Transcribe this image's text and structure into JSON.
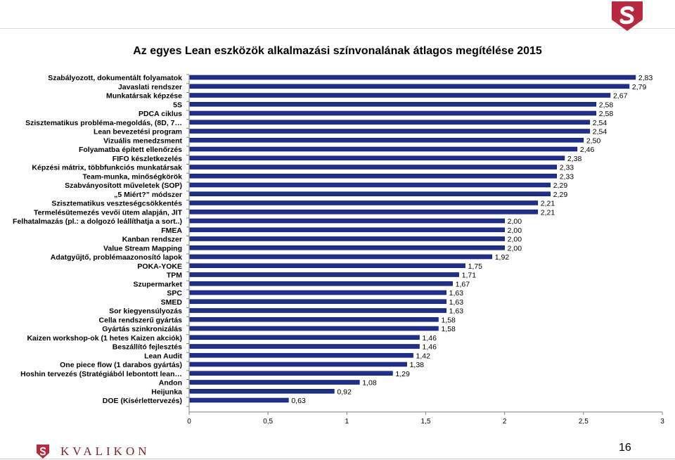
{
  "page": {
    "number": "16",
    "brand": "KVALIKON",
    "accent": "#b8283e"
  },
  "chart_data": {
    "type": "bar",
    "orientation": "horizontal",
    "title": "Az egyes Lean eszközök alkalmazási színvonalának átlagos megítélése 2015",
    "xlabel": "",
    "ylabel": "",
    "xlim": [
      0,
      3
    ],
    "xticks": [
      "0",
      "0,5",
      "1",
      "1,5",
      "2",
      "2,5",
      "3"
    ],
    "grid": false,
    "legend": "none",
    "bar_color": "#1f2f8f",
    "categories": [
      "Szabályozott, dokumentált folyamatok",
      "Javaslati rendszer",
      "Munkatársak képzése",
      "5S",
      "PDCA ciklus",
      "Szisztematikus probléma-megoldás, (8D, 7…",
      "Lean bevezetési program",
      "Vizuális menedzsment",
      "Folyamatba épített ellenőrzés",
      "FIFO készletkezelés",
      "Képzési mátrix, többfunkciós munkatársak",
      "Team-munka, minőségkörök",
      "Szabványosított műveletek (SOP)",
      "„5 Miért?” módszer",
      "Szisztematikus veszteségcsökkentés",
      "Termelésütemezés vevői ütem alapján, JIT",
      "Felhatalmazás (pl.: a dolgozó leállíthatja a sort..)",
      "FMEA",
      "Kanban rendszer",
      "Value Stream Mapping",
      "Adatgyűjtő, problémaazonosító lapok",
      "POKA-YOKE",
      "TPM",
      "Szupermarket",
      "SPC",
      "SMED",
      "Sor kiegyensúlyozás",
      "Cella rendszerű gyártás",
      "Gyártás szinkronizálás",
      "Kaizen workshop-ok (1 hetes  Kaizen akciók)",
      "Beszállító fejlesztés",
      "Lean Audit",
      "One piece flow (1 darabos gyártás)",
      "Hoshin tervezés (Stratégiából lebontott lean…",
      "Andon",
      "Heijunka",
      "DOE (Kísérlettervezés)"
    ],
    "values": [
      2.83,
      2.79,
      2.67,
      2.58,
      2.58,
      2.54,
      2.54,
      2.5,
      2.46,
      2.38,
      2.33,
      2.33,
      2.29,
      2.29,
      2.21,
      2.21,
      2.0,
      2.0,
      2.0,
      2.0,
      1.92,
      1.75,
      1.71,
      1.67,
      1.63,
      1.63,
      1.63,
      1.58,
      1.58,
      1.46,
      1.46,
      1.42,
      1.38,
      1.29,
      1.08,
      0.92,
      0.63
    ],
    "value_labels": [
      "2,83",
      "2,79",
      "2,67",
      "2,58",
      "2,58",
      "2,54",
      "2,54",
      "2,50",
      "2,46",
      "2,38",
      "2,33",
      "2,33",
      "2,29",
      "2,29",
      "2,21",
      "2,21",
      "2,00",
      "2,00",
      "2,00",
      "2,00",
      "1,92",
      "1,75",
      "1,71",
      "1,67",
      "1,63",
      "1,63",
      "1,63",
      "1,58",
      "1,58",
      "1,46",
      "1,46",
      "1,42",
      "1,38",
      "1,29",
      "1,08",
      "0,92",
      "0,63"
    ]
  }
}
